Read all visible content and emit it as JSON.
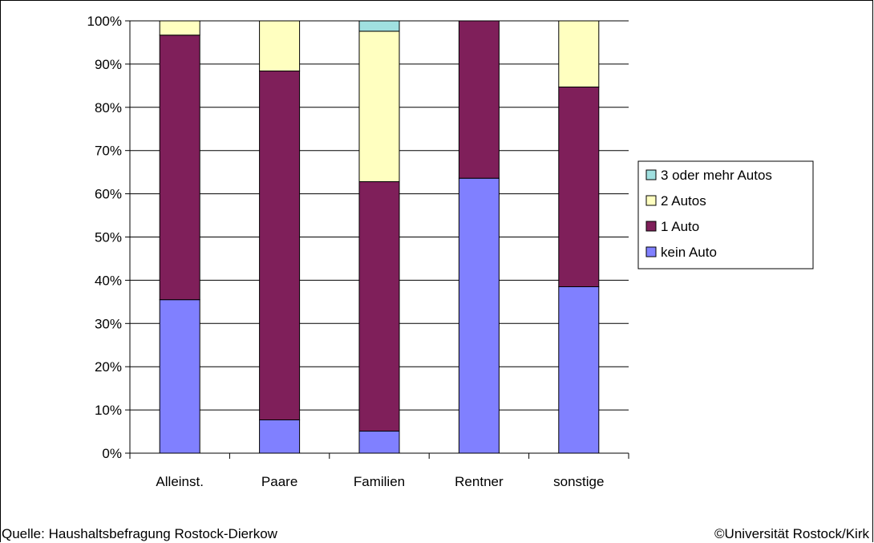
{
  "chart_data": {
    "type": "stacked-bar-100",
    "categories": [
      "Alleinst.",
      "Paare",
      "Familien",
      "Rentner",
      "sonstige"
    ],
    "y_ticks": [
      "0%",
      "10%",
      "20%",
      "30%",
      "40%",
      "50%",
      "60%",
      "70%",
      "80%",
      "90%",
      "100%"
    ],
    "ylim": [
      0,
      100
    ],
    "grid": true,
    "legend_position": "right",
    "series": [
      {
        "name": "kein Auto",
        "color": "#8080ff",
        "values": [
          35.5,
          7.7,
          5.1,
          63.6,
          38.5
        ]
      },
      {
        "name": "1 Auto",
        "color": "#7f1f5a",
        "values": [
          61.2,
          80.7,
          57.7,
          36.4,
          46.2
        ]
      },
      {
        "name": "2 Autos",
        "color": "#ffffc0",
        "values": [
          3.3,
          11.6,
          34.8,
          0.0,
          15.3
        ]
      },
      {
        "name": "3 oder mehr Autos",
        "color": "#a0e0e0",
        "values": [
          0.0,
          0.0,
          2.4,
          0.0,
          0.0
        ]
      }
    ]
  },
  "footer": {
    "source": "Quelle: Haushaltsbefragung Rostock-Dierkow",
    "copyright": "©Universität Rostock/Kirk"
  }
}
